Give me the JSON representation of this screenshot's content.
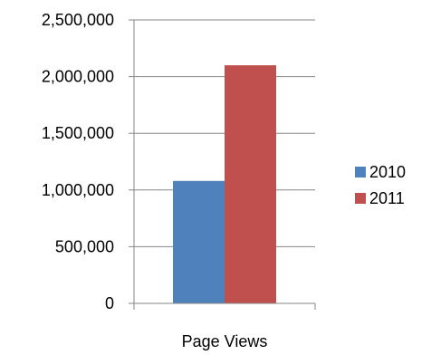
{
  "chart_data": {
    "type": "bar",
    "categories": [
      "Page Views"
    ],
    "series": [
      {
        "name": "2010",
        "values": [
          1080000
        ],
        "color": "#4F81BD"
      },
      {
        "name": "2011",
        "values": [
          2100000
        ],
        "color": "#C0504D"
      }
    ],
    "ylim": [
      0,
      2500000
    ],
    "yticks": [
      0,
      500000,
      1000000,
      1500000,
      2000000,
      2500000
    ],
    "ytick_labels": [
      "0",
      "500,000",
      "1,000,000",
      "1,500,000",
      "2,000,000",
      "2,500,000"
    ],
    "grid": true,
    "legend_position": "right",
    "title": "",
    "xlabel": "",
    "ylabel": ""
  }
}
